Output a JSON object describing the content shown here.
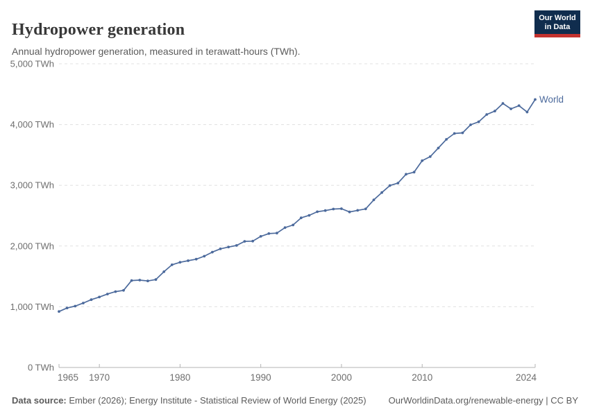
{
  "header": {
    "title": "Hydropower generation",
    "subtitle": "Annual hydropower generation, measured in terawatt-hours (TWh)."
  },
  "logo": {
    "line1": "Our World",
    "line2": "in Data",
    "bg_color": "#102d4e",
    "accent_color": "#c4322f"
  },
  "chart_data": {
    "type": "line",
    "title": "Hydropower generation",
    "ylabel": "TWh",
    "xlim": [
      1965,
      2024
    ],
    "ylim": [
      0,
      5000
    ],
    "grid": "dashed-horizontal",
    "legend_position": "end-of-line",
    "x_ticks": [
      1965,
      1970,
      1980,
      1990,
      2000,
      2010,
      2024
    ],
    "y_ticks": [
      {
        "value": 0,
        "label": "0 TWh"
      },
      {
        "value": 1000,
        "label": "1,000 TWh"
      },
      {
        "value": 2000,
        "label": "2,000 TWh"
      },
      {
        "value": 3000,
        "label": "3,000 TWh"
      },
      {
        "value": 4000,
        "label": "4,000 TWh"
      },
      {
        "value": 5000,
        "label": "5,000 TWh"
      }
    ],
    "series": [
      {
        "name": "World",
        "years": [
          1965,
          1966,
          1967,
          1968,
          1969,
          1970,
          1971,
          1972,
          1973,
          1974,
          1975,
          1976,
          1977,
          1978,
          1979,
          1980,
          1981,
          1982,
          1983,
          1984,
          1985,
          1986,
          1987,
          1988,
          1989,
          1990,
          1991,
          1992,
          1993,
          1994,
          1995,
          1996,
          1997,
          1998,
          1999,
          2000,
          2001,
          2002,
          2003,
          2004,
          2005,
          2006,
          2007,
          2008,
          2009,
          2010,
          2011,
          2012,
          2013,
          2014,
          2015,
          2016,
          2017,
          2018,
          2019,
          2020,
          2021,
          2022,
          2023,
          2024
        ],
        "values": [
          921,
          979,
          1010,
          1060,
          1117,
          1160,
          1209,
          1249,
          1269,
          1431,
          1438,
          1425,
          1447,
          1577,
          1691,
          1732,
          1758,
          1783,
          1832,
          1899,
          1953,
          1983,
          2009,
          2076,
          2080,
          2159,
          2204,
          2212,
          2303,
          2346,
          2463,
          2505,
          2564,
          2583,
          2609,
          2614,
          2561,
          2587,
          2611,
          2759,
          2880,
          2995,
          3035,
          3181,
          3216,
          3404,
          3471,
          3613,
          3756,
          3853,
          3863,
          3995,
          4045,
          4165,
          4222,
          4347,
          4258,
          4311,
          4205,
          4412
        ]
      }
    ],
    "colors": {
      "line": "#4c6a9c",
      "gridline": "#e0e0e0",
      "axis": "#b3b3b3",
      "tick_label": "#6e6e6e"
    }
  },
  "footer": {
    "datasource_label": "Data source:",
    "datasource_text": " Ember (2026); Energy Institute - Statistical Review of World Energy (2025)",
    "credit": "OurWorldinData.org/renewable-energy | CC BY"
  }
}
